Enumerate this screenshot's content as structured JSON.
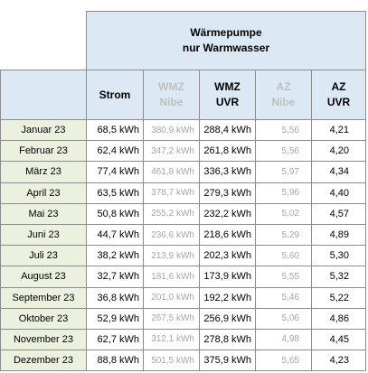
{
  "header": {
    "title": [
      "Wärmepumpe",
      "nur Warmwasser"
    ]
  },
  "table": {
    "columns": [
      [
        "Strom"
      ],
      [
        "WMZ",
        "Nibe"
      ],
      [
        "WMZ",
        "UVR"
      ],
      [
        "AZ",
        "Nibe"
      ],
      [
        "AZ",
        "UVR"
      ]
    ],
    "rows": [
      [
        "Januar 23",
        "68,5 kWh",
        "380,9 kWh",
        "288,4 kWh",
        "5,56",
        "4,21"
      ],
      [
        "Februar 23",
        "62,4 kWh",
        "347,2 kWh",
        "261,8 kWh",
        "5,56",
        "4,20"
      ],
      [
        "März 23",
        "77,4 kWh",
        "461,8 kWh",
        "336,3 kWh",
        "5,97",
        "4,34"
      ],
      [
        "April 23",
        "63,5 kWh",
        "378,7 kWh",
        "279,3 kWh",
        "5,96",
        "4,40"
      ],
      [
        "Mai 23",
        "50,8 kWh",
        "255,2 kWh",
        "232,2 kWh",
        "5,02",
        "4,57"
      ],
      [
        "Juni 23",
        "44,7 kWh",
        "236,6 kWh",
        "218,6 kWh",
        "5,29",
        "4,89"
      ],
      [
        "Juli 23",
        "38,2 kWh",
        "213,9 kWh",
        "202,3 kWh",
        "5,60",
        "5,30"
      ],
      [
        "August 23",
        "32,7 kWh",
        "181,6 kWh",
        "173,9 kWh",
        "5,55",
        "5,32"
      ],
      [
        "September 23",
        "36,8 kWh",
        "201,0 kWh",
        "192,2 kWh",
        "5,46",
        "5,22"
      ],
      [
        "Oktober 23",
        "52,9 kWh",
        "267,5 kWh",
        "256,9 kWh",
        "5,06",
        "4,86"
      ],
      [
        "November 23",
        "62,7 kWh",
        "312,1 kWh",
        "278,8 kWh",
        "4,98",
        "4,45"
      ],
      [
        "Dezember 23",
        "88,8 kWh",
        "501,5 kWh",
        "375,9 kWh",
        "5,65",
        "4,23"
      ]
    ]
  }
}
